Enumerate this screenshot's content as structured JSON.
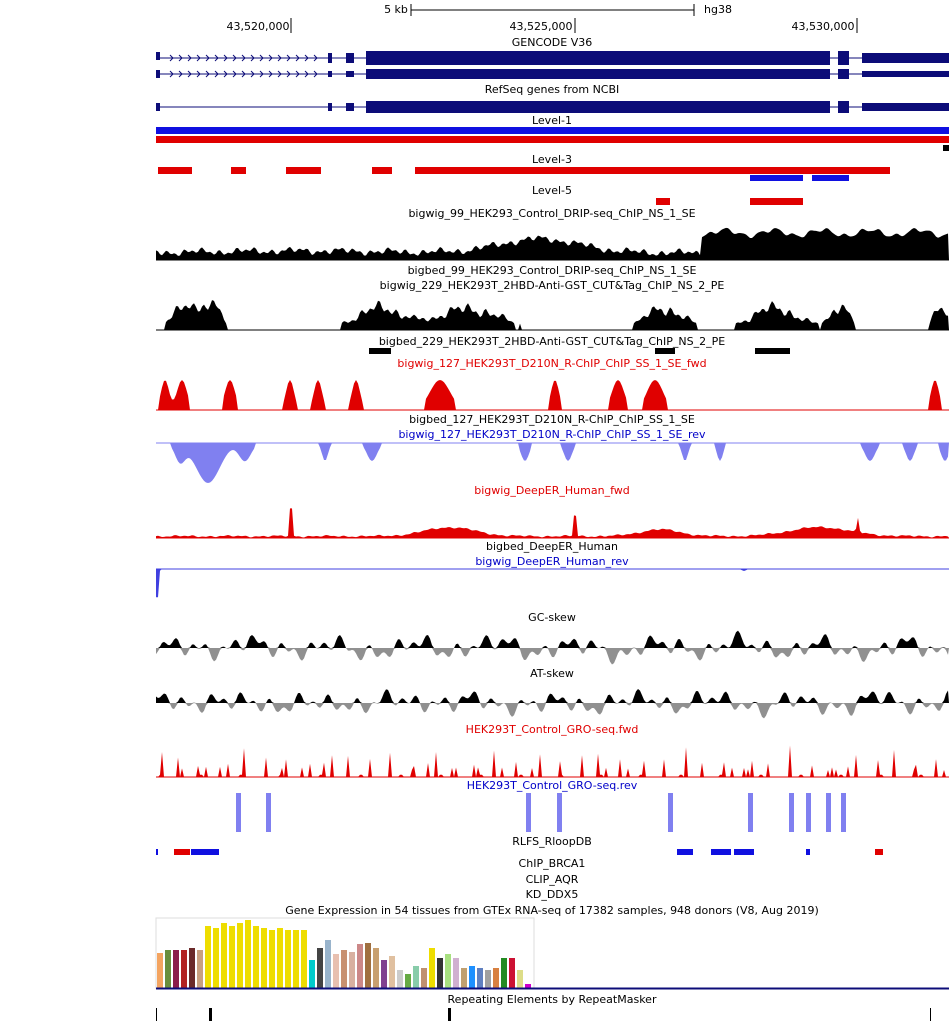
{
  "ruler": {
    "scale": "5 kb",
    "assembly": "hg38",
    "ticks": [
      "43,520,000",
      "43,525,000",
      "43,530,000"
    ]
  },
  "tracks": [
    "GENCODE V36",
    "RefSeq genes from NCBI",
    "Level-1",
    "Level-3",
    "Level-5",
    "bigwig_99_HEK293_Control_DRIP-seq_ChIP_NS_1_SE",
    "bigbed_99_HEK293_Control_DRIP-seq_ChIP_NS_1_SE",
    "bigwig_229_HEK293T_2HBD-Anti-GST_CUT&Tag_ChIP_NS_2_PE",
    "bigbed_229_HEK293T_2HBD-Anti-GST_CUT&Tag_ChIP_NS_2_PE",
    "bigwig_127_HEK293T_D210N_R-ChIP_ChIP_SS_1_SE_fwd",
    "bigbed_127_HEK293T_D210N_R-ChIP_ChIP_SS_1_SE",
    "bigwig_127_HEK293T_D210N_R-ChIP_ChIP_SS_1_SE_rev",
    "bigwig_DeepER_Human_fwd",
    "bigbed_DeepER_Human",
    "bigwig_DeepER_Human_rev",
    "GC-skew",
    "AT-skew",
    "HEK293T_Control_GRO-seq.fwd",
    "HEK293T_Control_GRO-seq.rev",
    "RLFS_RloopDB",
    "ChIP_BRCA1",
    "CLIP_AQR",
    "KD_DDX5",
    "Gene Expression in 54 tissues from GTEx RNA-seq of 17382 samples, 948 donors (V8, Aug 2019)",
    "Repeating Elements by RepeatMasker"
  ]
}
